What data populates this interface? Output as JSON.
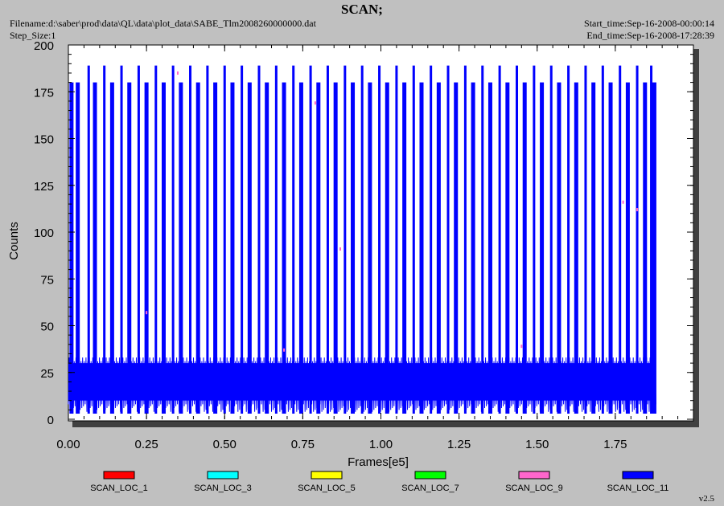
{
  "header": {
    "title": "SCAN;",
    "filename": "Filename:d:\\saber\\prod\\data\\QL\\data\\plot_data\\SABE_Tlm2008260000000.dat",
    "step_size": "Step_Size:1",
    "start_time": "Start_time:Sep-16-2008-00:00:14",
    "end_time": "End_time:Sep-16-2008-17:28:39"
  },
  "version": "v2.5",
  "chart_data": {
    "type": "line",
    "title": "SCAN;",
    "xlabel": "Frames[e5]",
    "ylabel": "Counts",
    "xlim": [
      0,
      2.0
    ],
    "ylim": [
      0,
      200
    ],
    "xticks": [
      "0.00",
      "0.25",
      "0.50",
      "0.75",
      "1.00",
      "1.25",
      "1.50",
      "1.75"
    ],
    "yticks": [
      "0",
      "25",
      "50",
      "75",
      "100",
      "125",
      "150",
      "175",
      "200"
    ],
    "grid": false,
    "legend_position": "bottom",
    "x_data_range": [
      0.0,
      1.88
    ],
    "series": [
      {
        "name": "SCAN_LOC_1",
        "color": "#ff0000",
        "description_values": {
          "typical_min": 10,
          "typical_max": 30
        }
      },
      {
        "name": "SCAN_LOC_3",
        "color": "#00ffff",
        "description_values": {
          "typical_min": 10,
          "typical_max": 30
        }
      },
      {
        "name": "SCAN_LOC_5",
        "color": "#ffff00",
        "description_values": {
          "typical_min": 10,
          "typical_max": 30
        }
      },
      {
        "name": "SCAN_LOC_7",
        "color": "#00ff00",
        "description_values": {
          "typical_min": 10,
          "typical_max": 30
        }
      },
      {
        "name": "SCAN_LOC_9",
        "color": "#ff66cc",
        "description_values": {
          "typical_min": 10,
          "typical_max": 30
        }
      },
      {
        "name": "SCAN_LOC_11",
        "color": "#0000ff",
        "description_values": {
          "typical_min": 3,
          "typical_max": 189
        }
      }
    ],
    "spike_levels": {
      "tall": 189,
      "regular": 180,
      "baseline_band": [
        10,
        30
      ]
    },
    "tall_spike_x": [
      0.065,
      0.115,
      0.17,
      0.225,
      0.28,
      0.335,
      0.39,
      0.445,
      0.5,
      0.555,
      0.61,
      0.665,
      0.72,
      0.775,
      0.83,
      0.885,
      0.94,
      0.995,
      1.05,
      1.105,
      1.16,
      1.215,
      1.27,
      1.325,
      1.38,
      1.435,
      1.49,
      1.545,
      1.6,
      1.655,
      1.71,
      1.765,
      1.82,
      1.865
    ],
    "regular_spike_x": [
      0.01,
      0.03,
      0.085,
      0.14,
      0.195,
      0.25,
      0.305,
      0.36,
      0.415,
      0.47,
      0.525,
      0.58,
      0.635,
      0.69,
      0.745,
      0.8,
      0.855,
      0.91,
      0.965,
      1.02,
      1.075,
      1.13,
      1.185,
      1.24,
      1.295,
      1.35,
      1.405,
      1.46,
      1.515,
      1.57,
      1.625,
      1.68,
      1.735,
      1.79,
      1.845,
      1.875
    ]
  }
}
